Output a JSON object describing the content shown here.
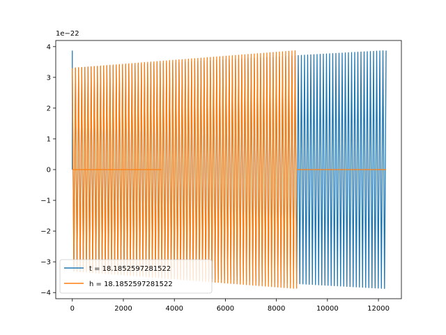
{
  "chart_data": {
    "type": "line",
    "title": "",
    "xlabel": "",
    "ylabel": "",
    "y_offset_label": "1e−22",
    "xlim": [
      -650,
      12900
    ],
    "ylim": [
      -4.2,
      4.2
    ],
    "x_ticks": [
      0,
      2000,
      4000,
      6000,
      8000,
      10000,
      12000
    ],
    "x_tick_labels": [
      "0",
      "2000",
      "4000",
      "6000",
      "8000",
      "10000",
      "12000"
    ],
    "y_ticks": [
      -4,
      -3,
      -2,
      -1,
      0,
      1,
      2,
      3,
      4
    ],
    "y_tick_labels": [
      "−4",
      "−3",
      "−2",
      "−1",
      "0",
      "1",
      "2",
      "3",
      "4"
    ],
    "grid": false,
    "legend_position": "lower-left",
    "series": [
      {
        "name": "t = 18.1852597281522",
        "color": "#1f77b4",
        "x_range": [
          0,
          12300
        ],
        "oscillating_segments": [
          {
            "x_start": 0,
            "x_end": 12300,
            "amp_start": 3.3,
            "amp_end": 3.87
          }
        ],
        "zero_segments": [],
        "spike_at_start": 3.87
      },
      {
        "name": "h = 18.1852597281522",
        "color": "#ff7f0e",
        "x_range": [
          0,
          12300
        ],
        "oscillating_segments": [
          {
            "x_start": 0,
            "x_end": 8800,
            "amp_start": 3.3,
            "amp_end": 3.87
          }
        ],
        "zero_segments": [
          {
            "x_start": 0,
            "x_end": 3500
          },
          {
            "x_start": 8800,
            "x_end": 12300
          }
        ],
        "spike_at_start": 0
      }
    ]
  }
}
